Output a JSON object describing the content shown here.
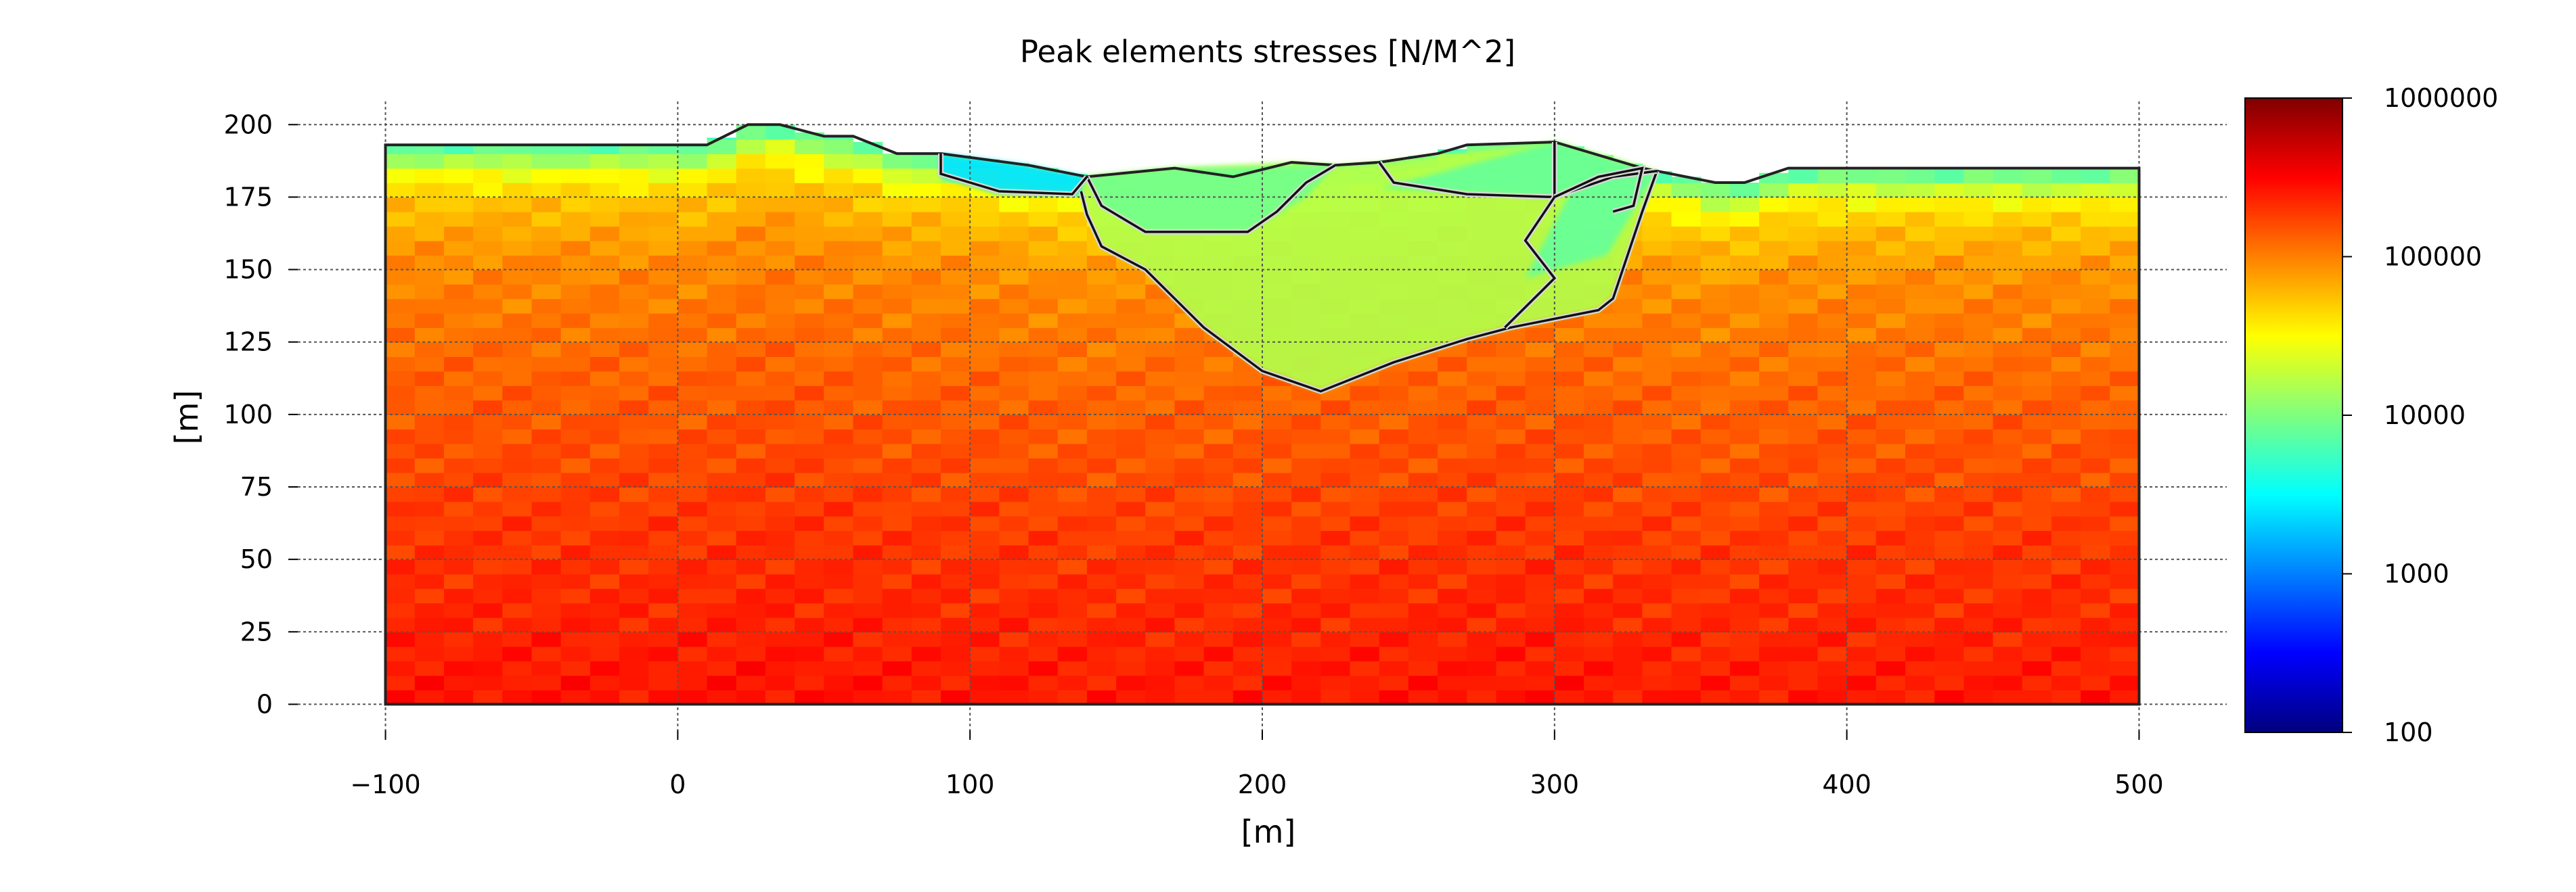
{
  "chart_data": {
    "type": "heatmap",
    "title": "Peak elements stresses [N/M^2]",
    "xlabel": "[m]",
    "ylabel": "[m]",
    "xlim": [
      -130,
      530
    ],
    "ylim": [
      -9,
      208
    ],
    "x_ticks": [
      {
        "value": -100,
        "label": "−100"
      },
      {
        "value": 0,
        "label": "0"
      },
      {
        "value": 100,
        "label": "100"
      },
      {
        "value": 200,
        "label": "200"
      },
      {
        "value": 300,
        "label": "300"
      },
      {
        "value": 400,
        "label": "400"
      },
      {
        "value": 500,
        "label": "500"
      }
    ],
    "y_ticks": [
      {
        "value": 0,
        "label": "0"
      },
      {
        "value": 25,
        "label": "25"
      },
      {
        "value": 50,
        "label": "50"
      },
      {
        "value": 75,
        "label": "75"
      },
      {
        "value": 100,
        "label": "100"
      },
      {
        "value": 125,
        "label": "125"
      },
      {
        "value": 150,
        "label": "150"
      },
      {
        "value": 175,
        "label": "175"
      },
      {
        "value": 200,
        "label": "200"
      }
    ],
    "grid": true,
    "colormap": "jet",
    "color_scale": "log",
    "colorbar": {
      "range": [
        100,
        1000000
      ],
      "ticks": [
        {
          "value": 100,
          "label": "100"
        },
        {
          "value": 1000,
          "label": "1000"
        },
        {
          "value": 10000,
          "label": "10000"
        },
        {
          "value": 100000,
          "label": "100000"
        },
        {
          "value": 1000000,
          "label": "1000000"
        }
      ],
      "colors": [
        "#00007f",
        "#0000ff",
        "#007fff",
        "#00ffff",
        "#7fff7f",
        "#ffff00",
        "#ff7f00",
        "#ff0000",
        "#7f0000"
      ]
    },
    "surface_profile": [
      [
        -100,
        193
      ],
      [
        10,
        193
      ],
      [
        24,
        200
      ],
      [
        35,
        200
      ],
      [
        50,
        196
      ],
      [
        60,
        196
      ],
      [
        75,
        190
      ],
      [
        90,
        190
      ],
      [
        120,
        186
      ],
      [
        140,
        182
      ],
      [
        170,
        185
      ],
      [
        190,
        182
      ],
      [
        210,
        187
      ],
      [
        225,
        186
      ],
      [
        240,
        187
      ],
      [
        260,
        190
      ],
      [
        270,
        193
      ],
      [
        300,
        194
      ],
      [
        330,
        185
      ],
      [
        355,
        180
      ],
      [
        365,
        180
      ],
      [
        380,
        185
      ],
      [
        500,
        185
      ]
    ],
    "field_samples": [
      {
        "depth": 0,
        "value": 6000
      },
      {
        "depth": 10,
        "value": 30000
      },
      {
        "depth": 20,
        "value": 55000
      },
      {
        "depth": 40,
        "value": 90000
      },
      {
        "depth": 80,
        "value": 130000
      },
      {
        "depth": 130,
        "value": 190000
      },
      {
        "depth": 200,
        "value": 280000
      }
    ],
    "zones": [
      {
        "name": "upper-left-blue-lens",
        "value": 2500,
        "polygon": [
          [
            90,
            190
          ],
          [
            120,
            186
          ],
          [
            140,
            182
          ],
          [
            138,
            176
          ],
          [
            110,
            176
          ],
          [
            90,
            182
          ]
        ]
      },
      {
        "name": "central-pit",
        "value": 16000,
        "polygon": [
          [
            138,
            177
          ],
          [
            140,
            169
          ],
          [
            145,
            158
          ],
          [
            160,
            150
          ],
          [
            180,
            130
          ],
          [
            200,
            115
          ],
          [
            220,
            108
          ],
          [
            245,
            118
          ],
          [
            270,
            126
          ],
          [
            285,
            130
          ],
          [
            315,
            136
          ],
          [
            320,
            140
          ],
          [
            330,
            170
          ],
          [
            335,
            184
          ],
          [
            300,
            194
          ],
          [
            240,
            187
          ],
          [
            225,
            186
          ],
          [
            210,
            187
          ],
          [
            170,
            185
          ],
          [
            140,
            182
          ]
        ]
      },
      {
        "name": "inner-upper-green",
        "value": 9000,
        "polygon": [
          [
            140,
            182
          ],
          [
            170,
            185
          ],
          [
            225,
            186
          ],
          [
            215,
            175
          ],
          [
            195,
            163
          ],
          [
            160,
            163
          ],
          [
            145,
            172
          ]
        ]
      },
      {
        "name": "right-green-block",
        "value": 8000,
        "polygon": [
          [
            300,
            194
          ],
          [
            330,
            185
          ],
          [
            335,
            183
          ],
          [
            328,
            172
          ],
          [
            318,
            155
          ],
          [
            300,
            150
          ],
          [
            290,
            147
          ],
          [
            306,
            178
          ],
          [
            300,
            175
          ],
          [
            240,
            178
          ]
        ]
      }
    ],
    "boundary_lines": [
      [
        [
          138,
          177
        ],
        [
          140,
          169
        ],
        [
          145,
          158
        ],
        [
          160,
          150
        ],
        [
          180,
          130
        ],
        [
          200,
          115
        ],
        [
          220,
          108
        ],
        [
          245,
          118
        ],
        [
          270,
          126
        ],
        [
          285,
          130
        ],
        [
          315,
          136
        ],
        [
          320,
          140
        ],
        [
          330,
          170
        ],
        [
          335,
          184
        ]
      ],
      [
        [
          140,
          182
        ],
        [
          145,
          172
        ],
        [
          160,
          163
        ],
        [
          195,
          163
        ],
        [
          205,
          170
        ],
        [
          215,
          180
        ],
        [
          225,
          186
        ]
      ],
      [
        [
          90,
          190
        ],
        [
          90,
          183
        ],
        [
          110,
          177
        ],
        [
          135,
          176
        ],
        [
          140,
          182
        ]
      ],
      [
        [
          240,
          187
        ],
        [
          245,
          180
        ],
        [
          270,
          176
        ],
        [
          300,
          175
        ],
        [
          320,
          182
        ],
        [
          335,
          184
        ]
      ],
      [
        [
          300,
          194
        ],
        [
          300,
          175
        ],
        [
          290,
          160
        ],
        [
          300,
          147
        ],
        [
          283,
          130
        ]
      ],
      [
        [
          300,
          175
        ],
        [
          315,
          182
        ],
        [
          330,
          185
        ],
        [
          327,
          172
        ],
        [
          320,
          170
        ]
      ]
    ]
  }
}
